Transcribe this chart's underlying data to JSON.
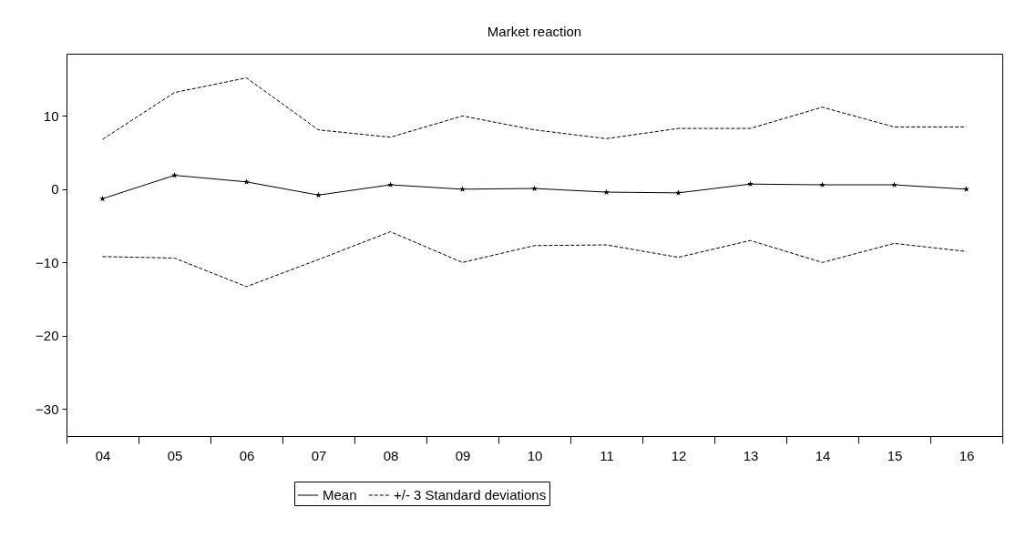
{
  "chart_data": {
    "type": "line",
    "title": "Market reaction",
    "categories": [
      "04",
      "05",
      "06",
      "07",
      "08",
      "09",
      "10",
      "11",
      "12",
      "13",
      "14",
      "15",
      "16"
    ],
    "series": [
      {
        "name": "Mean",
        "color": "#000000",
        "marker": "star",
        "line_style": "solid",
        "values": [
          -1.3,
          1.9,
          1.0,
          -0.8,
          0.6,
          0.0,
          0.1,
          -0.4,
          -0.5,
          0.7,
          0.6,
          0.6,
          0.0
        ]
      },
      {
        "name": "+/- 3 Standard deviations",
        "color": "#000000",
        "line_style": "dashed",
        "values": [
          6.8,
          13.2,
          15.2,
          8.1,
          7.1,
          10.0,
          8.1,
          6.9,
          8.3,
          8.3,
          11.2,
          8.5,
          8.5
        ]
      },
      {
        "color": "#000000",
        "line_style": "dashed",
        "values": [
          -9.2,
          -9.4,
          -13.3,
          -9.6,
          -5.8,
          -10.0,
          -7.7,
          -7.6,
          -9.3,
          -7.0,
          -10.0,
          -7.4,
          -8.5
        ]
      }
    ],
    "ylim": [
      -33.7,
      18.5
    ],
    "yticks": [
      -30,
      -20,
      -10,
      0,
      10
    ],
    "grid": false,
    "legend": "bottom"
  }
}
